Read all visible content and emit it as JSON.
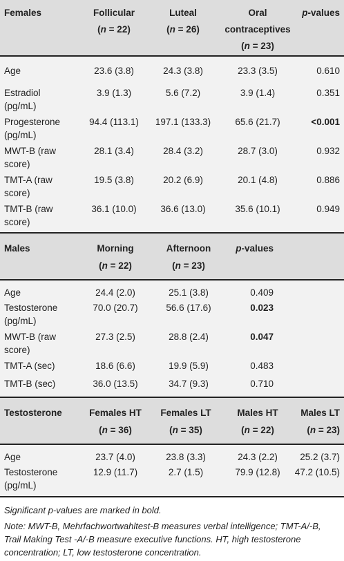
{
  "females": {
    "header": {
      "col0": "Females",
      "col1_line1": "Follicular",
      "col1_line2": "(n = 22)",
      "col2_line1": "Luteal",
      "col2_line2": "(n = 26)",
      "col3_line1": "Oral",
      "col3_line2": "contraceptives",
      "col3_line3": "(n = 23)",
      "col4": "p-values"
    },
    "rows": [
      {
        "label1": "Age",
        "label2": "",
        "v1": "23.6 (3.8)",
        "v2": "24.3 (3.8)",
        "v3": "23.3 (3.5)",
        "p": "0.610"
      },
      {
        "label1": "Estradiol",
        "label2": "(pg/mL)",
        "v1": "3.9 (1.3)",
        "v2": "5.6 (7.2)",
        "v3": "3.9 (1.4)",
        "p": "0.351"
      },
      {
        "label1": "Progesterone",
        "label2": "(pg/mL)",
        "v1": "94.4 (113.1)",
        "v2": "197.1 (133.3)",
        "v3": "65.6 (21.7)",
        "p": "<0.001"
      },
      {
        "label1": "MWT-B (raw",
        "label2": "score)",
        "v1": "28.1 (3.4)",
        "v2": "28.4 (3.2)",
        "v3": "28.7 (3.0)",
        "p": "0.932"
      },
      {
        "label1": "TMT-A (raw",
        "label2": "score)",
        "v1": "19.5 (3.8)",
        "v2": "20.2 (6.9)",
        "v3": "20.1 (4.8)",
        "p": "0.886"
      },
      {
        "label1": "TMT-B (raw",
        "label2": "score)",
        "v1": "36.1 (10.0)",
        "v2": "36.6 (13.0)",
        "v3": "35.6 (10.1)",
        "p": "0.949"
      }
    ]
  },
  "males": {
    "header": {
      "col0": "Males",
      "col1_line1": "Morning",
      "col1_line2": "(n = 22)",
      "col2_line1": "Afternoon",
      "col2_line2": "(n = 23)",
      "col3": "p-values"
    },
    "rows": [
      {
        "label1": "Age",
        "label2": "",
        "v1": "24.4 (2.0)",
        "v2": "25.1 (3.8)",
        "p": "0.409"
      },
      {
        "label1": "Testosterone",
        "label2": "(pg/mL)",
        "v1": "70.0 (20.7)",
        "v2": "56.6 (17.6)",
        "p": "0.023"
      },
      {
        "label1": "MWT-B (raw",
        "label2": "score)",
        "v1": "27.3 (2.5)",
        "v2": "28.8 (2.4)",
        "p": "0.047"
      },
      {
        "label1": "TMT-A (sec)",
        "label2": "",
        "v1": "18.6 (6.6)",
        "v2": "19.9 (5.9)",
        "p": "0.483"
      },
      {
        "label1": "TMT-B (sec)",
        "label2": "",
        "v1": "36.0 (13.5)",
        "v2": "34.7 (9.3)",
        "p": "0.710"
      }
    ]
  },
  "testosterone": {
    "header": {
      "col0": "Testosterone",
      "col1_line1": "Females HT",
      "col1_line2": "(n = 36)",
      "col2_line1": "Females LT",
      "col2_line2": "(n = 35)",
      "col3_line1": "Males HT",
      "col3_line2": "(n = 22)",
      "col4_line1": "Males LT",
      "col4_line2": "(n = 23)"
    },
    "rows": [
      {
        "label1": "Age",
        "label2": "",
        "v1": "23.7 (4.0)",
        "v2": "23.8 (3.3)",
        "v3": "24.3 (2.2)",
        "v4": "25.2 (3.7)"
      },
      {
        "label1": "Testosterone",
        "label2": "(pg/mL)",
        "v1": "12.9 (11.7)",
        "v2": "2.7 (1.5)",
        "v3": "79.9 (12.8)",
        "v4": "47.2 (10.5)"
      }
    ]
  },
  "notes": {
    "significance": "Significant p-values are marked in bold.",
    "abbreviations": "Note: MWT-B, Mehrfachwortwahltest-B measures verbal intelligence; TMT-A/-B, Trail Making Test -A/-B measure executive functions. HT, high testosterone concentration; LT, low testosterone concentration."
  }
}
